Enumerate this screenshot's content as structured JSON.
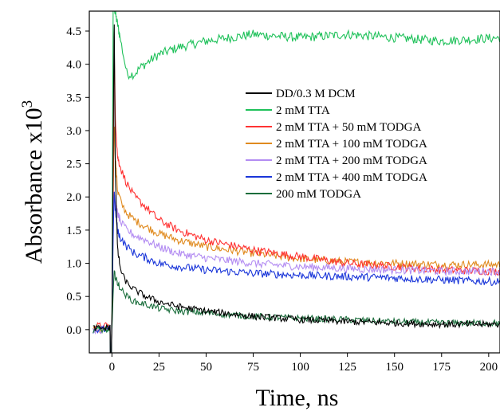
{
  "chart_data": {
    "type": "line",
    "xlabel": "Time, ns",
    "ylabel": "Absorbance x10",
    "ylabel_exponent": "3",
    "xlim": [
      -12,
      206
    ],
    "ylim": [
      -0.35,
      4.8
    ],
    "x_ticks": [
      {
        "value": 0,
        "label": "0"
      },
      {
        "value": 25,
        "label": "25"
      },
      {
        "value": 50,
        "label": "50"
      },
      {
        "value": 75,
        "label": "75"
      },
      {
        "value": 100,
        "label": "100"
      },
      {
        "value": 125,
        "label": "125"
      },
      {
        "value": 150,
        "label": "150"
      },
      {
        "value": 175,
        "label": "175"
      },
      {
        "value": 200,
        "label": "200"
      }
    ],
    "y_ticks": [
      {
        "value": 0.0,
        "label": "0.0"
      },
      {
        "value": 0.5,
        "label": "0.5"
      },
      {
        "value": 1.0,
        "label": "1.0"
      },
      {
        "value": 1.5,
        "label": "1.5"
      },
      {
        "value": 2.0,
        "label": "2.0"
      },
      {
        "value": 2.5,
        "label": "2.5"
      },
      {
        "value": 3.0,
        "label": "3.0"
      },
      {
        "value": 3.5,
        "label": "3.5"
      },
      {
        "value": 4.0,
        "label": "4.0"
      },
      {
        "value": 4.5,
        "label": "4.5"
      }
    ],
    "grid": false,
    "legend_position": "center-right",
    "series": [
      {
        "name": "DD/0.3 M DCM",
        "color": "#000000",
        "x": [
          -10,
          -5,
          -2,
          0,
          0.6,
          1.2,
          1.8,
          3,
          5,
          8,
          12,
          18,
          25,
          35,
          50,
          75,
          100,
          125,
          150,
          175,
          206
        ],
        "y": [
          0.02,
          0.02,
          0.03,
          0.05,
          2.5,
          4.8,
          2.4,
          1.2,
          0.85,
          0.7,
          0.6,
          0.5,
          0.42,
          0.35,
          0.28,
          0.2,
          0.15,
          0.12,
          0.1,
          0.08,
          0.08
        ]
      },
      {
        "name": "2 mM TTA",
        "color": "#1fc15a",
        "x": [
          -10,
          -5,
          -2,
          0,
          0.6,
          1.5,
          3,
          5,
          8,
          12,
          15,
          20,
          25,
          35,
          50,
          75,
          100,
          125,
          150,
          175,
          206
        ],
        "y": [
          0.0,
          0.0,
          0.02,
          0.0,
          4.8,
          4.8,
          4.6,
          4.3,
          3.85,
          3.85,
          3.95,
          4.05,
          4.15,
          4.25,
          4.35,
          4.45,
          4.4,
          4.45,
          4.4,
          4.35,
          4.4
        ]
      },
      {
        "name": "2 mM TTA + 50 mM TODGA",
        "color": "#ff3333",
        "x": [
          -10,
          -5,
          -2,
          0,
          0.6,
          1.2,
          1.8,
          3,
          5,
          8,
          12,
          18,
          25,
          35,
          50,
          75,
          100,
          125,
          150,
          175,
          206
        ],
        "y": [
          0.05,
          0.05,
          0.05,
          0.0,
          2.0,
          4.3,
          3.2,
          2.6,
          2.4,
          2.2,
          2.0,
          1.85,
          1.65,
          1.5,
          1.35,
          1.2,
          1.1,
          1.0,
          0.95,
          0.9,
          0.88
        ]
      },
      {
        "name": "2 mM TTA + 100 mM TODGA",
        "color": "#e08a1e",
        "x": [
          -10,
          -5,
          -2,
          0,
          0.6,
          1.2,
          1.8,
          3,
          5,
          8,
          12,
          18,
          25,
          35,
          50,
          75,
          100,
          125,
          150,
          175,
          206
        ],
        "y": [
          0.0,
          0.0,
          0.02,
          0.0,
          1.8,
          3.1,
          2.6,
          2.1,
          1.9,
          1.75,
          1.65,
          1.55,
          1.45,
          1.35,
          1.25,
          1.15,
          1.07,
          1.02,
          1.0,
          0.98,
          0.98
        ]
      },
      {
        "name": "2 mM TTA + 200 mM TODGA",
        "color": "#b38cf2",
        "x": [
          -10,
          -5,
          -2,
          0,
          0.6,
          1.2,
          1.8,
          3,
          5,
          8,
          12,
          18,
          25,
          35,
          50,
          75,
          100,
          125,
          150,
          175,
          206
        ],
        "y": [
          0.0,
          0.0,
          0.02,
          0.0,
          1.5,
          2.1,
          1.9,
          1.75,
          1.6,
          1.5,
          1.42,
          1.35,
          1.25,
          1.15,
          1.08,
          1.0,
          0.95,
          0.92,
          0.9,
          0.88,
          0.88
        ]
      },
      {
        "name": "2 mM TTA + 400 mM TODGA",
        "color": "#1a36d9",
        "x": [
          -10,
          -5,
          -2,
          0,
          0.6,
          1.2,
          1.8,
          3,
          5,
          8,
          12,
          18,
          25,
          35,
          50,
          75,
          100,
          125,
          150,
          175,
          206
        ],
        "y": [
          0.0,
          0.0,
          0.0,
          0.0,
          1.3,
          2.1,
          1.8,
          1.5,
          1.35,
          1.25,
          1.15,
          1.08,
          1.0,
          0.95,
          0.9,
          0.85,
          0.82,
          0.8,
          0.78,
          0.75,
          0.72
        ]
      },
      {
        "name": "200 mM TODGA",
        "color": "#1a6e3c",
        "x": [
          -10,
          -5,
          -2,
          0,
          0.6,
          1.2,
          1.8,
          3,
          5,
          8,
          12,
          18,
          25,
          35,
          50,
          75,
          100,
          125,
          150,
          175,
          206
        ],
        "y": [
          0.0,
          0.0,
          0.0,
          0.0,
          0.5,
          0.9,
          0.8,
          0.7,
          0.6,
          0.5,
          0.42,
          0.38,
          0.32,
          0.28,
          0.25,
          0.2,
          0.17,
          0.15,
          0.12,
          0.1,
          0.1
        ]
      }
    ]
  }
}
